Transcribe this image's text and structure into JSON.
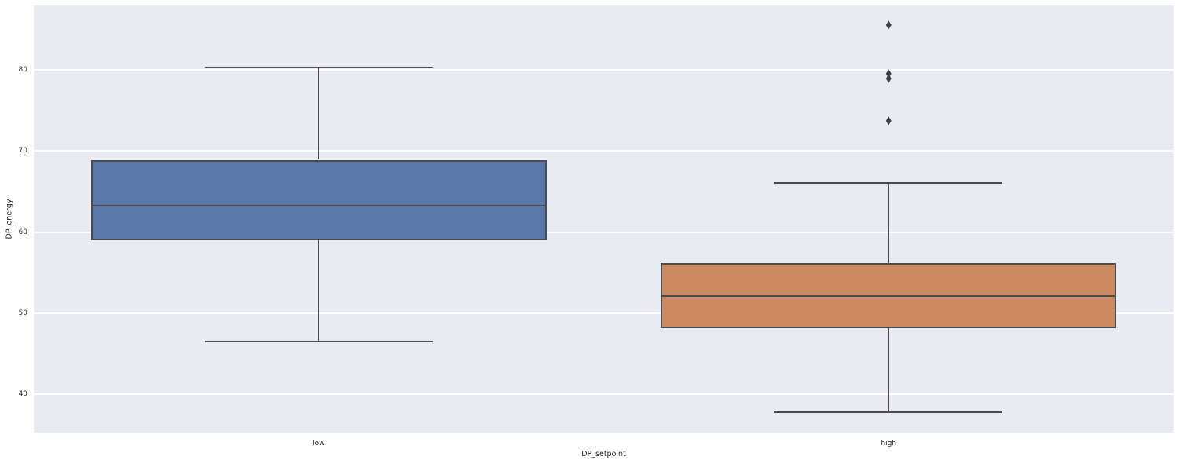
{
  "figure": {
    "xlabel": "DP_setpoint",
    "ylabel": "DP_energy"
  },
  "chart_data": {
    "type": "box",
    "title": "",
    "xlabel": "DP_setpoint",
    "ylabel": "DP_energy",
    "categories": [
      "low",
      "high"
    ],
    "y_ticks": [
      40,
      50,
      60,
      70,
      80
    ],
    "ylim": [
      35.3,
      87.9
    ],
    "grid": true,
    "legend": "none",
    "boxes": [
      {
        "category": "low",
        "fill": "#5a77a9",
        "whisker_low": 46.5,
        "q1": 59.0,
        "median": 63.2,
        "q3": 68.9,
        "whisker_high": 80.3,
        "outliers": []
      },
      {
        "category": "high",
        "fill": "#cc8a62",
        "whisker_low": 37.8,
        "q1": 48.2,
        "median": 52.1,
        "q3": 56.2,
        "whisker_high": 66.0,
        "outliers": [
          73.7,
          78.9,
          79.5,
          85.5
        ]
      }
    ],
    "colors": {
      "plot_bg": "#eaeaf2",
      "gridline": "#ffffff",
      "box_edge": "#4c4c4c",
      "tick_text": "#262626"
    }
  }
}
